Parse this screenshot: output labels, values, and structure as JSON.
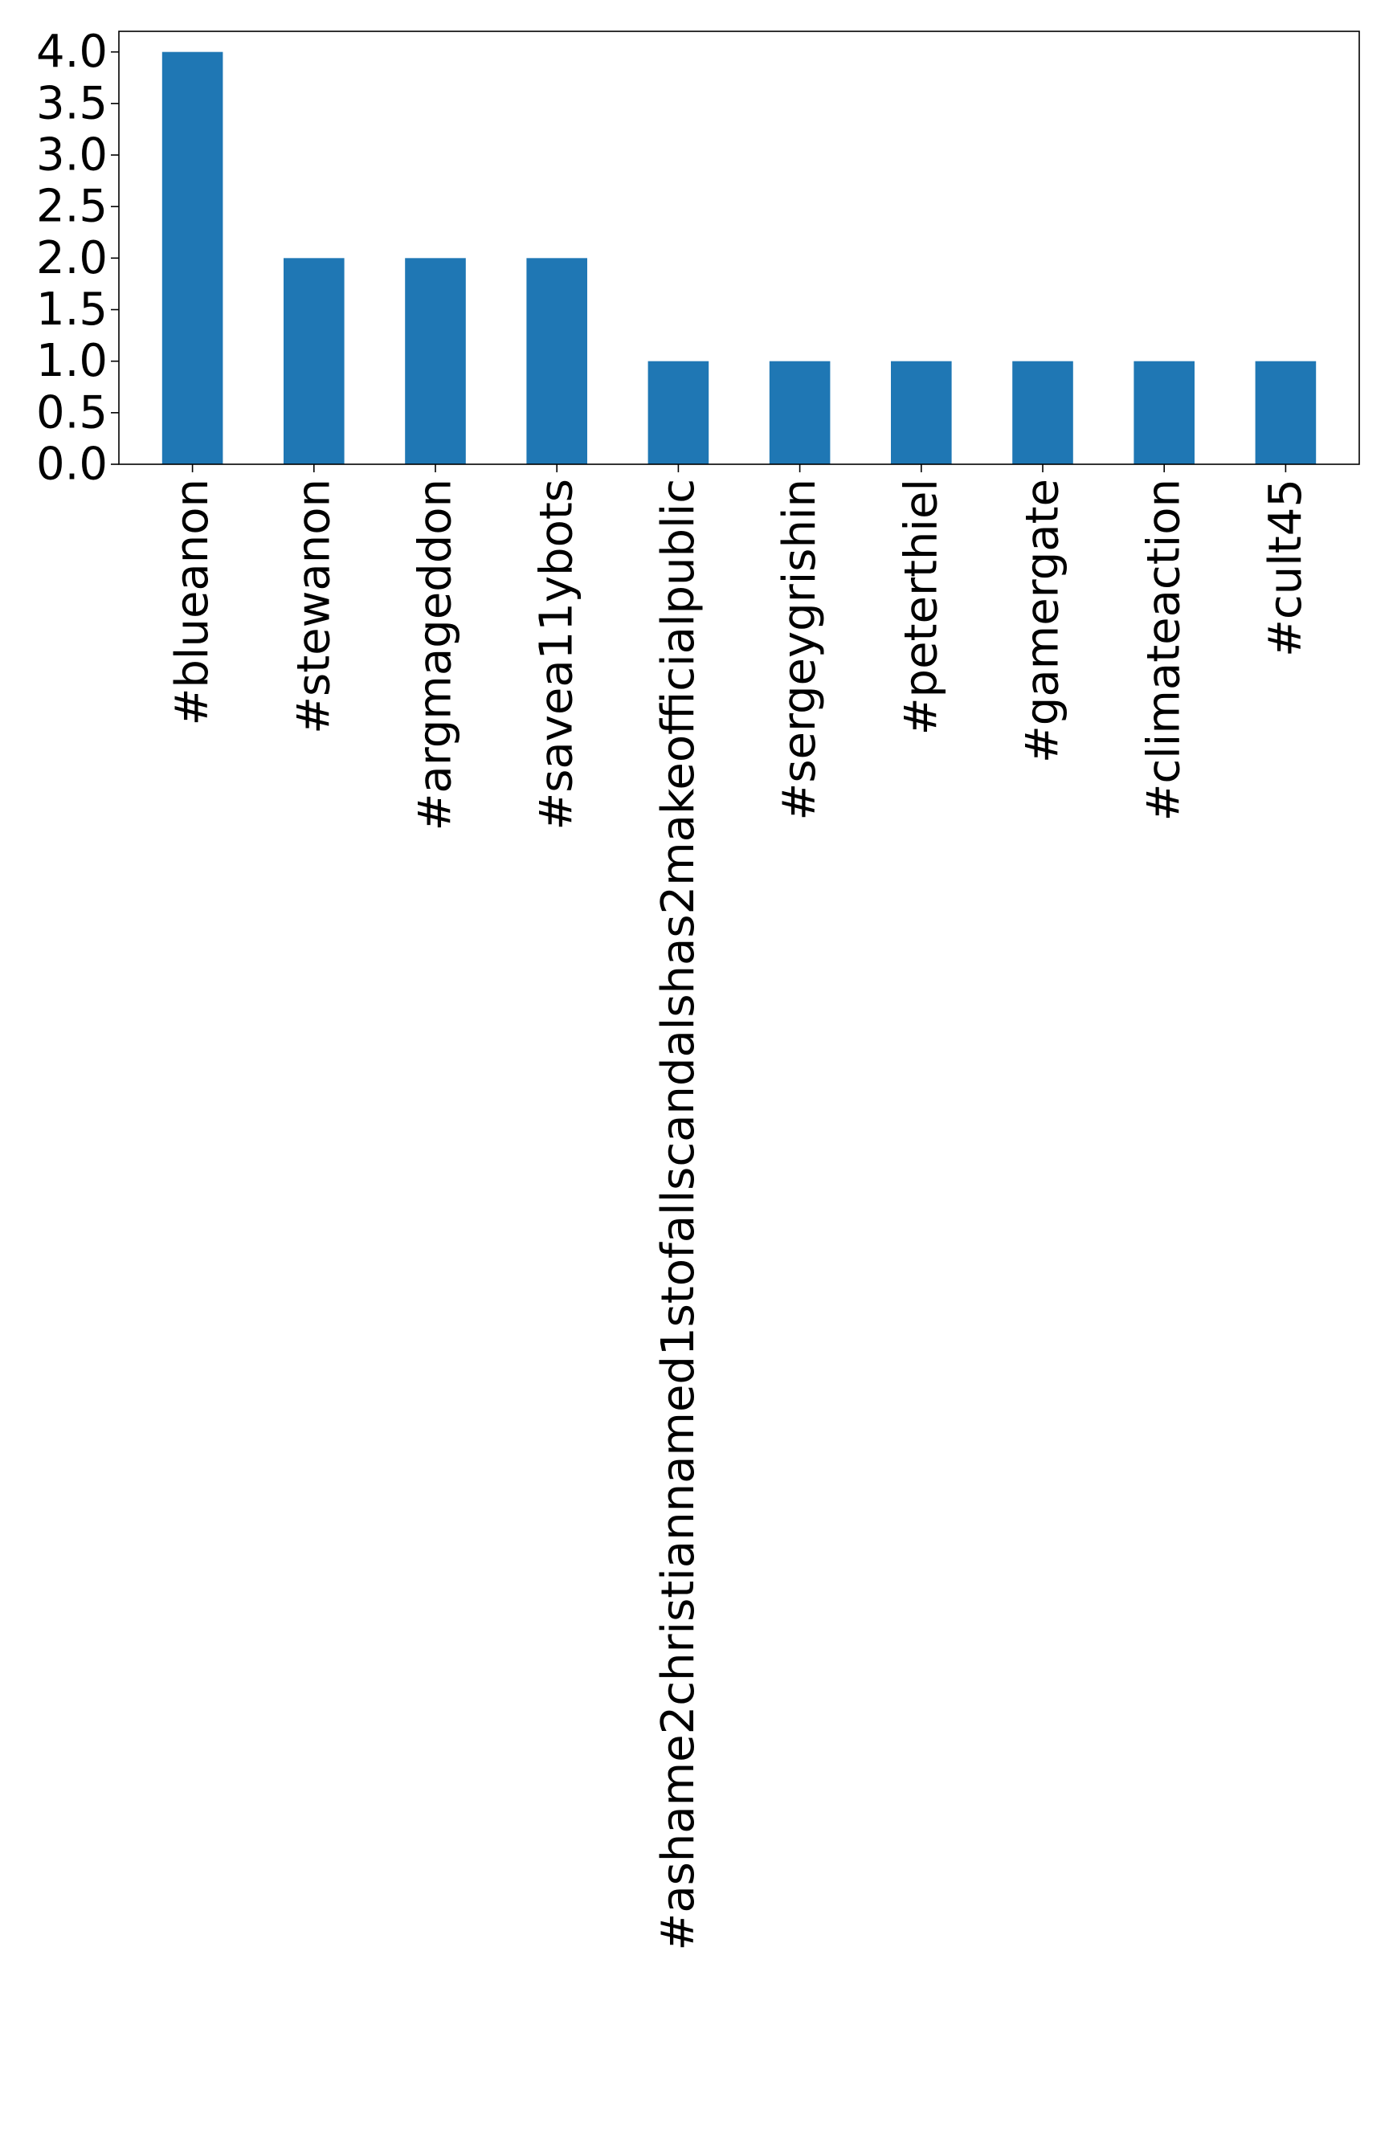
{
  "chart_data": {
    "type": "bar",
    "categories": [
      "#blueanon",
      "#stewanon",
      "#argmageddon",
      "#savea11ybots",
      "#ashame2christiannamed1stofallscandalshas2makeofficialpublic",
      "#sergeygrishin",
      "#peterthiel",
      "#gamergate",
      "#climateaction",
      "#cult45"
    ],
    "values": [
      4,
      2,
      2,
      2,
      1,
      1,
      1,
      1,
      1,
      1
    ],
    "ylim": [
      0,
      4.2
    ],
    "yticks": [
      0.0,
      0.5,
      1.0,
      1.5,
      2.0,
      2.5,
      3.0,
      3.5,
      4.0
    ],
    "ytick_labels": [
      "0.0",
      "0.5",
      "1.0",
      "1.5",
      "2.0",
      "2.5",
      "3.0",
      "3.5",
      "4.0"
    ],
    "bar_color": "#1f77b4",
    "grid": false,
    "legend": "none"
  }
}
